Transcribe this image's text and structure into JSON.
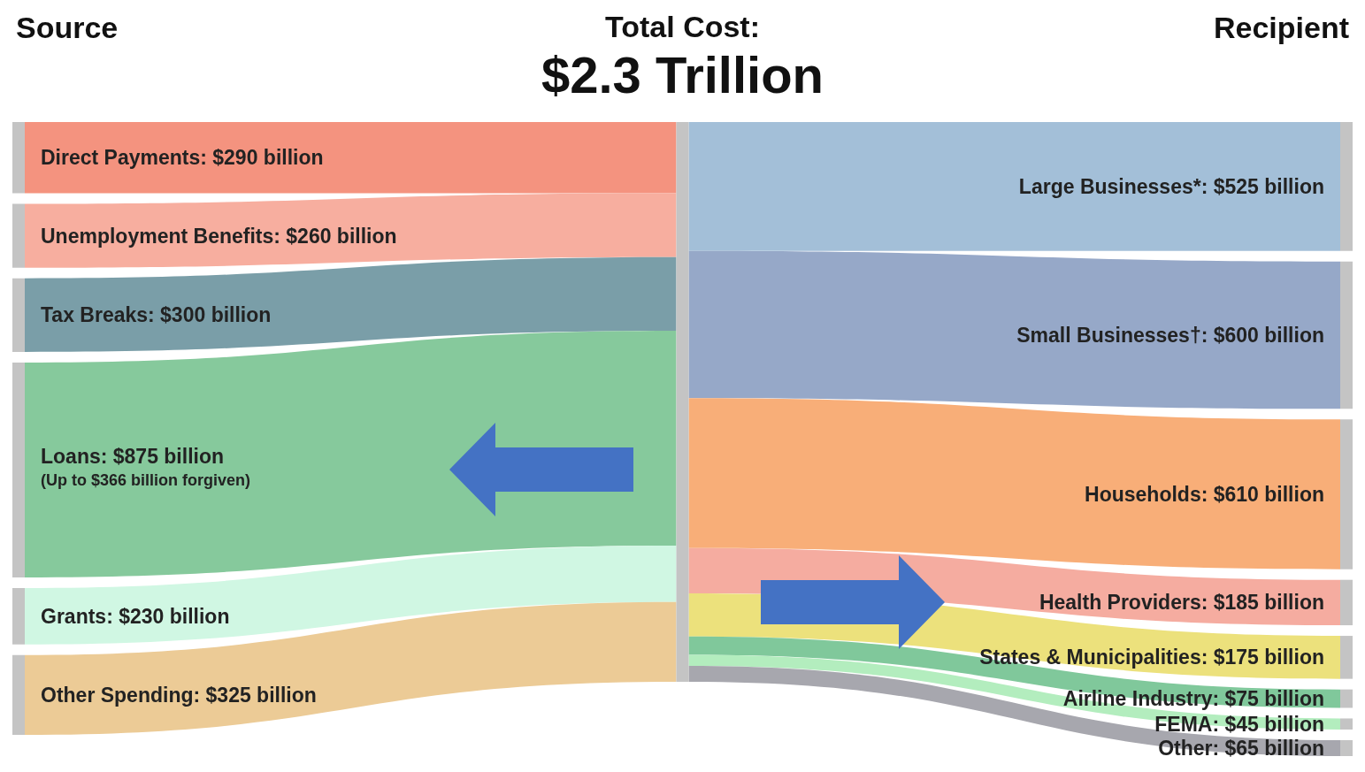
{
  "chart_data": {
    "type": "other",
    "title": "Total Cost:",
    "subtitle": "$2.3 Trillion",
    "categories": [
      "Direct Payments",
      "Unemployment Benefits",
      "Tax Breaks",
      "Loans",
      "Grants",
      "Other Spending",
      "Large Businesses*",
      "Small Businesses†",
      "Households",
      "Health Providers",
      "States & Municipalities",
      "Airline Industry",
      "FEMA",
      "Other"
    ],
    "series": [
      {
        "name": "Source",
        "values": [
          290,
          260,
          300,
          875,
          230,
          325,
          null,
          null,
          null,
          null,
          null,
          null,
          null,
          null
        ],
        "value_labels": [
          ": $290 billion",
          ": $260 billion",
          ": $300 billion",
          ": $875 billion",
          ": $230 billion",
          ": $325 billion",
          null,
          null,
          null,
          null,
          null,
          null,
          null,
          null
        ],
        "colors": [
          "#f4937f",
          "#f7ae9f",
          "#7a9ea8",
          "#86c99c",
          "#d0f7e3",
          "#eccb96",
          null,
          null,
          null,
          null,
          null,
          null,
          null,
          null
        ]
      },
      {
        "name": "Recipient",
        "values": [
          null,
          null,
          null,
          null,
          null,
          null,
          525,
          600,
          610,
          185,
          175,
          75,
          45,
          65
        ],
        "value_labels": [
          null,
          null,
          null,
          null,
          null,
          null,
          ": $525 billion",
          ": $600 billion",
          ": $610 billion",
          ": $185 billion",
          ": $175 billion",
          ": $75 billion",
          ": $45 billion",
          ": $65 billion"
        ],
        "colors": [
          null,
          null,
          null,
          null,
          null,
          null,
          "#a3bfd8",
          "#96a8c8",
          "#f8ae78",
          "#f5aca0",
          "#ece17c",
          "#80c89b",
          "#b3edbe",
          "#a7a7ae"
        ]
      }
    ],
    "annotations": [
      {
        "text": "(Up to $366 billion forgiven)",
        "x": "Loans"
      }
    ]
  }
}
